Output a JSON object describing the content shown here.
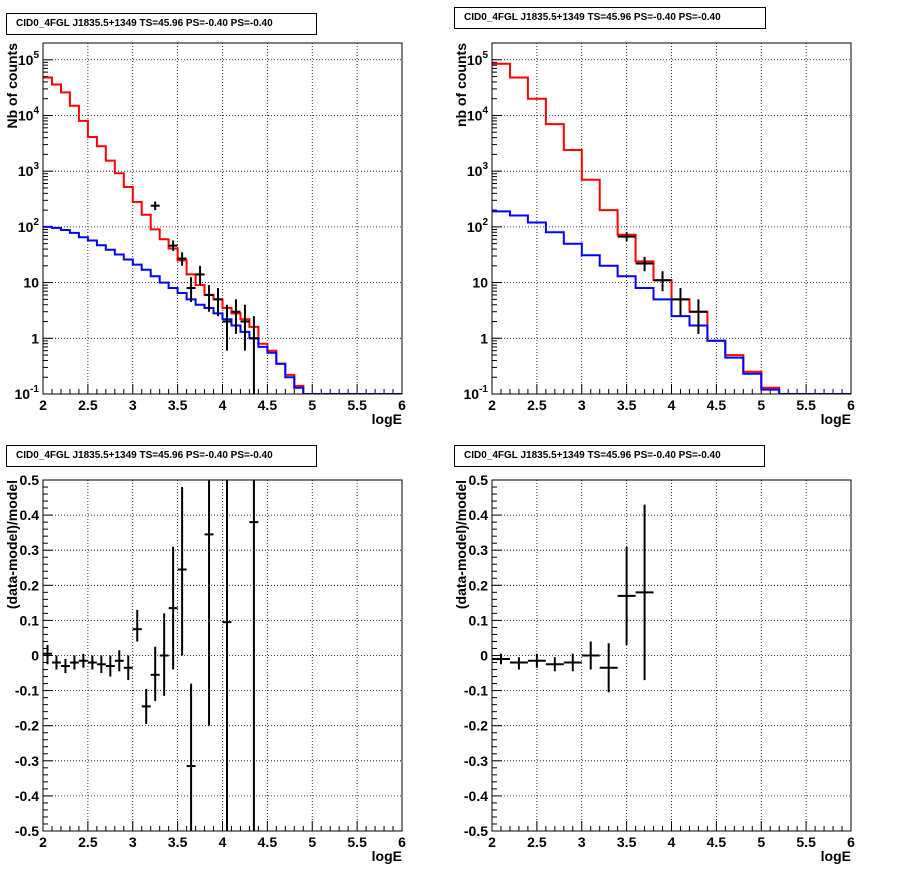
{
  "chart_data": [
    {
      "type": "histogram",
      "panel": "top-left",
      "title": "CID0_4FGL J1835.5+1349 TS=45.96 PS=-0.40 PS=-0.40",
      "xlabel": "logE",
      "ylabel": "Nb of counts",
      "ylabel_text_color": "#000000",
      "xlim": [
        2,
        6
      ],
      "ylim": [
        0.1,
        200000
      ],
      "yscale": "log",
      "grid": true,
      "x_ticks": [
        "2",
        "2.5",
        "3",
        "3.5",
        "4",
        "4.5",
        "5",
        "5.5",
        "6"
      ],
      "y_ticks": [
        "10^-1",
        "1",
        "10",
        "10^2",
        "10^3",
        "10^4",
        "10^5"
      ],
      "bin_edges": [
        2.0,
        2.1,
        2.2,
        2.3,
        2.4,
        2.5,
        2.6,
        2.7,
        2.8,
        2.9,
        3.0,
        3.1,
        3.2,
        3.3,
        3.4,
        3.5,
        3.6,
        3.7,
        3.8,
        3.9,
        4.0,
        4.1,
        4.2,
        4.3,
        4.4,
        4.5,
        4.6,
        4.7,
        4.8,
        4.9,
        5.0,
        5.1,
        5.2,
        5.3,
        5.4,
        5.5,
        5.6,
        5.7,
        5.8,
        5.9,
        6.0
      ],
      "series": [
        {
          "name": "",
          "kind": "step",
          "color": "#ff0000",
          "values": [
            48000,
            36000,
            26000,
            15000,
            8000,
            4100,
            2800,
            1550,
            920,
            520,
            280,
            165,
            90,
            60,
            41,
            25,
            14,
            9,
            6,
            5,
            3.5,
            2.8,
            2.2,
            1.6,
            0.8,
            0.6,
            0.35,
            0.22,
            0.14,
            0.1,
            0.09,
            0.09,
            0.09,
            0.09,
            0.09,
            0.09,
            0.09,
            0.09,
            0.09,
            0.09
          ]
        },
        {
          "name": "",
          "kind": "step",
          "color": "#0000ff",
          "values": [
            100,
            96,
            88,
            78,
            65,
            57,
            47,
            39,
            32,
            26,
            21,
            17,
            13,
            10,
            8,
            6.5,
            5,
            4,
            3.5,
            2.8,
            2.2,
            1.7,
            1.3,
            1.0,
            0.7,
            0.55,
            0.35,
            0.2,
            0.13,
            0.1,
            0.09,
            0.09,
            0.09,
            0.09,
            0.09,
            0.09,
            0.09,
            0.09,
            0.09,
            0.09
          ]
        },
        {
          "name": "",
          "kind": "points",
          "color": "#000000",
          "points": [
            {
              "x": 3.25,
              "y": 240,
              "ylo": 200,
              "yhi": 285,
              "xerr": 0.05
            },
            {
              "x": 3.45,
              "y": 46,
              "ylo": 37,
              "yhi": 57,
              "xerr": 0.05
            },
            {
              "x": 3.55,
              "y": 27,
              "ylo": 20,
              "yhi": 35,
              "xerr": 0.05
            },
            {
              "x": 3.65,
              "y": 8,
              "ylo": 4.5,
              "yhi": 12.5,
              "xerr": 0.05
            },
            {
              "x": 3.75,
              "y": 14,
              "ylo": 9,
              "yhi": 20,
              "xerr": 0.05
            },
            {
              "x": 3.85,
              "y": 6,
              "ylo": 3,
              "yhi": 9,
              "xerr": 0.05
            },
            {
              "x": 3.95,
              "y": 5,
              "ylo": 2.5,
              "yhi": 8,
              "xerr": 0.05
            },
            {
              "x": 4.05,
              "y": 2,
              "ylo": 0.6,
              "yhi": 4,
              "xerr": 0.05
            },
            {
              "x": 4.15,
              "y": 3,
              "ylo": 1.2,
              "yhi": 5,
              "xerr": 0.05
            },
            {
              "x": 4.25,
              "y": 2,
              "ylo": 0.6,
              "yhi": 4,
              "xerr": 0.05
            },
            {
              "x": 4.35,
              "y": 1,
              "ylo": 0.1,
              "yhi": 2.5,
              "xerr": 0.05
            }
          ]
        }
      ]
    },
    {
      "type": "histogram",
      "panel": "top-right",
      "title": "CID0_4FGL J1835.5+1349 TS=45.96 PS=-0.40 PS=-0.40",
      "xlabel": "logE",
      "ylabel": "nb of counts",
      "xlim": [
        2,
        6
      ],
      "ylim": [
        0.1,
        200000
      ],
      "yscale": "log",
      "grid": true,
      "x_ticks": [
        "2",
        "2.5",
        "3",
        "3.5",
        "4",
        "4.5",
        "5",
        "5.5",
        "6"
      ],
      "y_ticks": [
        "10^-1",
        "1",
        "10",
        "10^2",
        "10^3",
        "10^4",
        "10^5"
      ],
      "bin_edges": [
        2.0,
        2.2,
        2.4,
        2.6,
        2.8,
        3.0,
        3.2,
        3.4,
        3.6,
        3.8,
        4.0,
        4.2,
        4.4,
        4.6,
        4.8,
        5.0,
        5.2,
        5.4,
        5.6,
        5.8,
        6.0
      ],
      "series": [
        {
          "name": "",
          "kind": "step",
          "color": "#ff0000",
          "values": [
            85000,
            48000,
            20000,
            7000,
            2400,
            700,
            200,
            72,
            24,
            11,
            5,
            3,
            0.9,
            0.5,
            0.25,
            0.13,
            0.09,
            0.09,
            0.09,
            0.09
          ]
        },
        {
          "name": "",
          "kind": "step",
          "color": "#0000ff",
          "values": [
            190,
            160,
            120,
            80,
            50,
            31,
            20,
            13,
            8,
            5,
            2.5,
            1.7,
            0.9,
            0.45,
            0.23,
            0.12,
            0.09,
            0.09,
            0.09,
            0.09
          ]
        },
        {
          "name": "",
          "kind": "points",
          "color": "#000000",
          "points": [
            {
              "x": 3.5,
              "y": 67,
              "ylo": 55,
              "yhi": 80,
              "xerr": 0.1
            },
            {
              "x": 3.7,
              "y": 22,
              "ylo": 16,
              "yhi": 29,
              "xerr": 0.1
            },
            {
              "x": 3.9,
              "y": 11,
              "ylo": 7,
              "yhi": 16,
              "xerr": 0.1
            },
            {
              "x": 4.1,
              "y": 5,
              "ylo": 2.6,
              "yhi": 8,
              "xerr": 0.1
            },
            {
              "x": 4.3,
              "y": 3,
              "ylo": 1.2,
              "yhi": 5,
              "xerr": 0.1
            }
          ]
        }
      ]
    },
    {
      "type": "scatter",
      "panel": "bottom-left",
      "title": "CID0_4FGL J1835.5+1349 TS=45.96 PS=-0.40 PS=-0.40",
      "xlabel": "logE",
      "ylabel": "(data-model)/model",
      "xlim": [
        2,
        6
      ],
      "ylim": [
        -0.5,
        0.5
      ],
      "grid": true,
      "x_ticks": [
        "2",
        "2.5",
        "3",
        "3.5",
        "4",
        "4.5",
        "5",
        "5.5",
        "6"
      ],
      "y_ticks": [
        "-0.5",
        "-0.4",
        "-0.3",
        "-0.2",
        "-0.1",
        "0",
        "0.1",
        "0.2",
        "0.3",
        "0.4",
        "0.5"
      ],
      "series": [
        {
          "name": "",
          "color": "#000000",
          "points": [
            {
              "x": 2.05,
              "y": 0.005,
              "ylo": -0.025,
              "yhi": 0.03,
              "xerr": 0.05
            },
            {
              "x": 2.15,
              "y": -0.02,
              "ylo": -0.04,
              "yhi": 0.0,
              "xerr": 0.05
            },
            {
              "x": 2.25,
              "y": -0.03,
              "ylo": -0.05,
              "yhi": -0.01,
              "xerr": 0.05
            },
            {
              "x": 2.35,
              "y": -0.02,
              "ylo": -0.04,
              "yhi": 0.0,
              "xerr": 0.05
            },
            {
              "x": 2.45,
              "y": -0.015,
              "ylo": -0.035,
              "yhi": 0.005,
              "xerr": 0.05
            },
            {
              "x": 2.55,
              "y": -0.02,
              "ylo": -0.04,
              "yhi": 0.0,
              "xerr": 0.05
            },
            {
              "x": 2.65,
              "y": -0.025,
              "ylo": -0.05,
              "yhi": 0.0,
              "xerr": 0.05
            },
            {
              "x": 2.75,
              "y": -0.03,
              "ylo": -0.06,
              "yhi": 0.0,
              "xerr": 0.05
            },
            {
              "x": 2.85,
              "y": -0.015,
              "ylo": -0.045,
              "yhi": 0.015,
              "xerr": 0.05
            },
            {
              "x": 2.95,
              "y": -0.035,
              "ylo": -0.07,
              "yhi": 0.0,
              "xerr": 0.05
            },
            {
              "x": 3.05,
              "y": 0.075,
              "ylo": 0.04,
              "yhi": 0.13,
              "xerr": 0.05
            },
            {
              "x": 3.15,
              "y": -0.145,
              "ylo": -0.195,
              "yhi": -0.095,
              "xerr": 0.05
            },
            {
              "x": 3.25,
              "y": -0.055,
              "ylo": -0.13,
              "yhi": 0.025,
              "xerr": 0.05
            },
            {
              "x": 3.35,
              "y": 0.0,
              "ylo": -0.115,
              "yhi": 0.12,
              "xerr": 0.05
            },
            {
              "x": 3.45,
              "y": 0.135,
              "ylo": -0.04,
              "yhi": 0.31,
              "xerr": 0.05
            },
            {
              "x": 3.55,
              "y": 0.245,
              "ylo": 0.0,
              "yhi": 0.48,
              "xerr": 0.05
            },
            {
              "x": 3.65,
              "y": -0.315,
              "ylo": -0.5,
              "yhi": -0.08,
              "xerr": 0.05
            },
            {
              "x": 3.85,
              "y": 0.345,
              "ylo": -0.2,
              "yhi": 0.5,
              "xerr": 0.05
            },
            {
              "x": 4.05,
              "y": 0.095,
              "ylo": -0.5,
              "yhi": 0.5,
              "xerr": 0.05
            },
            {
              "x": 4.35,
              "y": 0.38,
              "ylo": -0.5,
              "yhi": 0.5,
              "xerr": 0.05
            }
          ]
        }
      ]
    },
    {
      "type": "scatter",
      "panel": "bottom-right",
      "title": "CID0_4FGL J1835.5+1349 TS=45.96 PS=-0.40 PS=-0.40",
      "xlabel": "logE",
      "ylabel": "(data-model)/model",
      "xlim": [
        2,
        6
      ],
      "ylim": [
        -0.5,
        0.5
      ],
      "grid": true,
      "x_ticks": [
        "2",
        "2.5",
        "3",
        "3.5",
        "4",
        "4.5",
        "5",
        "5.5",
        "6"
      ],
      "y_ticks": [
        "-0.5",
        "-0.4",
        "-0.3",
        "-0.2",
        "-0.1",
        "0",
        "0.1",
        "0.2",
        "0.3",
        "0.4",
        "0.5"
      ],
      "series": [
        {
          "name": "",
          "color": "#000000",
          "points": [
            {
              "x": 2.1,
              "y": -0.01,
              "ylo": -0.025,
              "yhi": 0.005,
              "xerr": 0.1
            },
            {
              "x": 2.3,
              "y": -0.02,
              "ylo": -0.04,
              "yhi": -0.005,
              "xerr": 0.1
            },
            {
              "x": 2.5,
              "y": -0.015,
              "ylo": -0.035,
              "yhi": 0.005,
              "xerr": 0.1
            },
            {
              "x": 2.7,
              "y": -0.025,
              "ylo": -0.045,
              "yhi": -0.005,
              "xerr": 0.1
            },
            {
              "x": 2.9,
              "y": -0.02,
              "ylo": -0.045,
              "yhi": 0.005,
              "xerr": 0.1
            },
            {
              "x": 3.1,
              "y": 0.0,
              "ylo": -0.04,
              "yhi": 0.04,
              "xerr": 0.1
            },
            {
              "x": 3.3,
              "y": -0.035,
              "ylo": -0.105,
              "yhi": 0.035,
              "xerr": 0.1
            },
            {
              "x": 3.5,
              "y": 0.17,
              "ylo": 0.03,
              "yhi": 0.31,
              "xerr": 0.1
            },
            {
              "x": 3.7,
              "y": 0.18,
              "ylo": -0.07,
              "yhi": 0.43,
              "xerr": 0.1
            }
          ]
        }
      ]
    }
  ]
}
